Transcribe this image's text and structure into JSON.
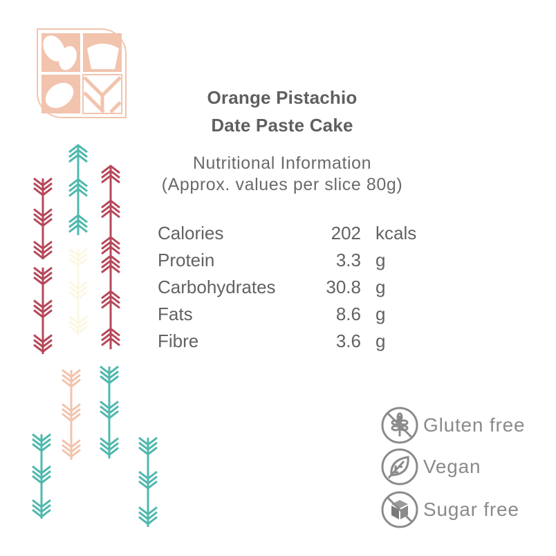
{
  "title": {
    "line1": "Orange Pistachio",
    "line2": "Date Paste Cake"
  },
  "subtitle": {
    "line1": "Nutritional Information",
    "line2": "(Approx. values per slice 80g)"
  },
  "nutrition": [
    {
      "label": "Calories",
      "value": "202",
      "unit": "kcals"
    },
    {
      "label": "Protein",
      "value": "3.3",
      "unit": "g"
    },
    {
      "label": "Carbohydrates",
      "value": "30.8",
      "unit": "g"
    },
    {
      "label": "Fats",
      "value": "8.6",
      "unit": "g"
    },
    {
      "label": "Fibre",
      "value": "3.6",
      "unit": "g"
    }
  ],
  "badges": [
    {
      "label": "Gluten free",
      "icon": "no-wheat-icon"
    },
    {
      "label": "Vegan",
      "icon": "leaf-icon"
    },
    {
      "label": "Sugar free",
      "icon": "no-sugar-cube-icon"
    }
  ],
  "colors": {
    "red": "#b5485a",
    "teal": "#4fb8ad",
    "peach": "#f2c3ad",
    "cream": "#fbf8e3",
    "text": "#666666",
    "icon": "#8a8a8a",
    "logo": "#f2c3ad"
  }
}
